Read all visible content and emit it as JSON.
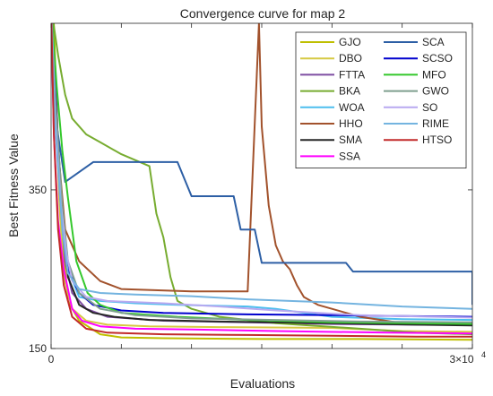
{
  "chart_data": {
    "type": "line",
    "title": "Convergence curve for map 2",
    "xlabel": "Evaluations",
    "ylabel": "Best Fitness Value",
    "xlim": [
      0,
      30000
    ],
    "ylim": [
      150,
      560
    ],
    "x_tick_labels": [
      {
        "value": 0,
        "label": "0"
      }
    ],
    "x_minor_ticks": [
      5000,
      10000,
      15000,
      20000,
      25000
    ],
    "x_exponent_label": "3×10",
    "x_exponent_power": "4",
    "y_ticks": [
      {
        "value": 150,
        "label": "150"
      },
      {
        "value": 350,
        "label": "350"
      }
    ],
    "legend_position": "top-right",
    "legend_columns": 2,
    "series": [
      {
        "name": "GJO",
        "color": "#bfbf00",
        "points": [
          [
            0,
            580
          ],
          [
            200,
            560
          ],
          [
            500,
            400
          ],
          [
            800,
            290
          ],
          [
            1200,
            210
          ],
          [
            2000,
            185
          ],
          [
            3500,
            168
          ],
          [
            5000,
            164
          ],
          [
            8000,
            163
          ],
          [
            15000,
            162
          ],
          [
            22000,
            162
          ],
          [
            30000,
            161
          ]
        ]
      },
      {
        "name": "DBO",
        "color": "#d6c942",
        "points": [
          [
            0,
            580
          ],
          [
            250,
            480
          ],
          [
            600,
            330
          ],
          [
            900,
            240
          ],
          [
            1500,
            200
          ],
          [
            2500,
            185
          ],
          [
            4000,
            180
          ],
          [
            7000,
            178
          ],
          [
            12000,
            177
          ],
          [
            20000,
            176
          ],
          [
            25000,
            172
          ],
          [
            30000,
            171
          ]
        ]
      },
      {
        "name": "FTTA",
        "color": "#7e4ea2",
        "points": [
          [
            0,
            580
          ],
          [
            300,
            500
          ],
          [
            600,
            350
          ],
          [
            1000,
            260
          ],
          [
            1500,
            220
          ],
          [
            2500,
            200
          ],
          [
            4000,
            190
          ],
          [
            8000,
            185
          ],
          [
            14000,
            183
          ],
          [
            20000,
            181
          ],
          [
            26000,
            180
          ],
          [
            30000,
            180
          ]
        ]
      },
      {
        "name": "BKA",
        "color": "#77ac30",
        "points": [
          [
            0,
            580
          ],
          [
            500,
            520
          ],
          [
            1000,
            470
          ],
          [
            1500,
            440
          ],
          [
            2500,
            420
          ],
          [
            3500,
            410
          ],
          [
            5000,
            395
          ],
          [
            7000,
            380
          ],
          [
            7500,
            320
          ],
          [
            8000,
            290
          ],
          [
            8500,
            240
          ],
          [
            9000,
            210
          ],
          [
            10000,
            200
          ],
          [
            12000,
            190
          ],
          [
            16000,
            182
          ],
          [
            22000,
            175
          ],
          [
            26000,
            170
          ],
          [
            30000,
            168
          ]
        ]
      },
      {
        "name": "WOA",
        "color": "#4dbeee",
        "points": [
          [
            0,
            580
          ],
          [
            300,
            460
          ],
          [
            800,
            310
          ],
          [
            1200,
            250
          ],
          [
            2000,
            215
          ],
          [
            3500,
            210
          ],
          [
            6000,
            207
          ],
          [
            9000,
            205
          ],
          [
            14000,
            203
          ],
          [
            16000,
            200
          ],
          [
            20000,
            190
          ],
          [
            25000,
            187
          ],
          [
            30000,
            186
          ]
        ]
      },
      {
        "name": "HHO",
        "color": "#a2522c",
        "points": [
          [
            0,
            580
          ],
          [
            400,
            420
          ],
          [
            1000,
            300
          ],
          [
            2000,
            260
          ],
          [
            3500,
            235
          ],
          [
            5000,
            225
          ],
          [
            10000,
            222
          ],
          [
            14000,
            222
          ],
          [
            14800,
            560
          ],
          [
            15000,
            430
          ],
          [
            15500,
            330
          ],
          [
            16000,
            280
          ],
          [
            16500,
            260
          ],
          [
            17000,
            250
          ],
          [
            17500,
            230
          ],
          [
            18000,
            215
          ],
          [
            19000,
            205
          ],
          [
            20000,
            200
          ],
          [
            22000,
            190
          ],
          [
            25000,
            182
          ],
          [
            30000,
            181
          ]
        ]
      },
      {
        "name": "SMA",
        "color": "#262626",
        "points": [
          [
            0,
            580
          ],
          [
            300,
            470
          ],
          [
            700,
            350
          ],
          [
            1200,
            240
          ],
          [
            2000,
            205
          ],
          [
            3000,
            195
          ],
          [
            4500,
            190
          ],
          [
            7000,
            186
          ],
          [
            12000,
            184
          ],
          [
            20000,
            182
          ],
          [
            26000,
            180
          ],
          [
            30000,
            179
          ]
        ]
      },
      {
        "name": "SSA",
        "color": "#ff00ff",
        "points": [
          [
            0,
            580
          ],
          [
            200,
            420
          ],
          [
            500,
            310
          ],
          [
            900,
            250
          ],
          [
            1500,
            200
          ],
          [
            2200,
            185
          ],
          [
            3500,
            178
          ],
          [
            6000,
            175
          ],
          [
            10000,
            174
          ],
          [
            16000,
            172
          ],
          [
            24000,
            170
          ],
          [
            30000,
            169
          ]
        ]
      },
      {
        "name": "SCA",
        "color": "#2d5fa5",
        "points": [
          [
            0,
            580
          ],
          [
            400,
            430
          ],
          [
            1000,
            360
          ],
          [
            3000,
            385
          ],
          [
            9000,
            385
          ],
          [
            10000,
            342
          ],
          [
            13000,
            342
          ],
          [
            13500,
            300
          ],
          [
            14500,
            300
          ],
          [
            15000,
            258
          ],
          [
            21000,
            258
          ],
          [
            21500,
            247
          ],
          [
            30000,
            247
          ],
          [
            30000,
            205
          ]
        ]
      },
      {
        "name": "SCSO",
        "color": "#0000cd",
        "points": [
          [
            0,
            580
          ],
          [
            300,
            460
          ],
          [
            700,
            330
          ],
          [
            1200,
            250
          ],
          [
            2000,
            220
          ],
          [
            3000,
            205
          ],
          [
            5000,
            198
          ],
          [
            8000,
            195
          ],
          [
            14000,
            193
          ],
          [
            20000,
            192
          ],
          [
            25000,
            191
          ],
          [
            30000,
            190
          ]
        ]
      },
      {
        "name": "MFO",
        "color": "#34c82c",
        "points": [
          [
            0,
            580
          ],
          [
            400,
            480
          ],
          [
            800,
            400
          ],
          [
            1200,
            340
          ],
          [
            1800,
            260
          ],
          [
            2600,
            220
          ],
          [
            3500,
            205
          ],
          [
            5000,
            195
          ],
          [
            9000,
            190
          ],
          [
            14000,
            186
          ],
          [
            20000,
            183
          ],
          [
            30000,
            181
          ]
        ]
      },
      {
        "name": "GWO",
        "color": "#7f9f8f",
        "points": [
          [
            0,
            580
          ],
          [
            300,
            460
          ],
          [
            800,
            330
          ],
          [
            1200,
            260
          ],
          [
            2000,
            220
          ],
          [
            3500,
            200
          ],
          [
            6000,
            192
          ],
          [
            10000,
            188
          ],
          [
            16000,
            186
          ],
          [
            22000,
            184
          ],
          [
            30000,
            183
          ]
        ]
      },
      {
        "name": "SO",
        "color": "#b8a9f0",
        "points": [
          [
            0,
            580
          ],
          [
            300,
            440
          ],
          [
            700,
            330
          ],
          [
            1100,
            270
          ],
          [
            1500,
            235
          ],
          [
            2500,
            215
          ],
          [
            4000,
            210
          ],
          [
            8000,
            207
          ],
          [
            12000,
            203
          ],
          [
            16000,
            198
          ],
          [
            22000,
            192
          ],
          [
            30000,
            189
          ]
        ]
      },
      {
        "name": "RIME",
        "color": "#74b4e0",
        "points": [
          [
            0,
            580
          ],
          [
            300,
            430
          ],
          [
            800,
            300
          ],
          [
            1200,
            245
          ],
          [
            2000,
            225
          ],
          [
            3500,
            220
          ],
          [
            6000,
            218
          ],
          [
            10000,
            216
          ],
          [
            14000,
            212
          ],
          [
            20000,
            208
          ],
          [
            25000,
            203
          ],
          [
            30000,
            200
          ]
        ]
      },
      {
        "name": "HTSO",
        "color": "#c22a2a",
        "points": [
          [
            0,
            580
          ],
          [
            200,
            420
          ],
          [
            500,
            300
          ],
          [
            900,
            230
          ],
          [
            1500,
            190
          ],
          [
            2500,
            175
          ],
          [
            4000,
            170
          ],
          [
            8000,
            168
          ],
          [
            14000,
            167
          ],
          [
            20000,
            166
          ],
          [
            26000,
            165
          ],
          [
            30000,
            165
          ]
        ]
      }
    ]
  }
}
